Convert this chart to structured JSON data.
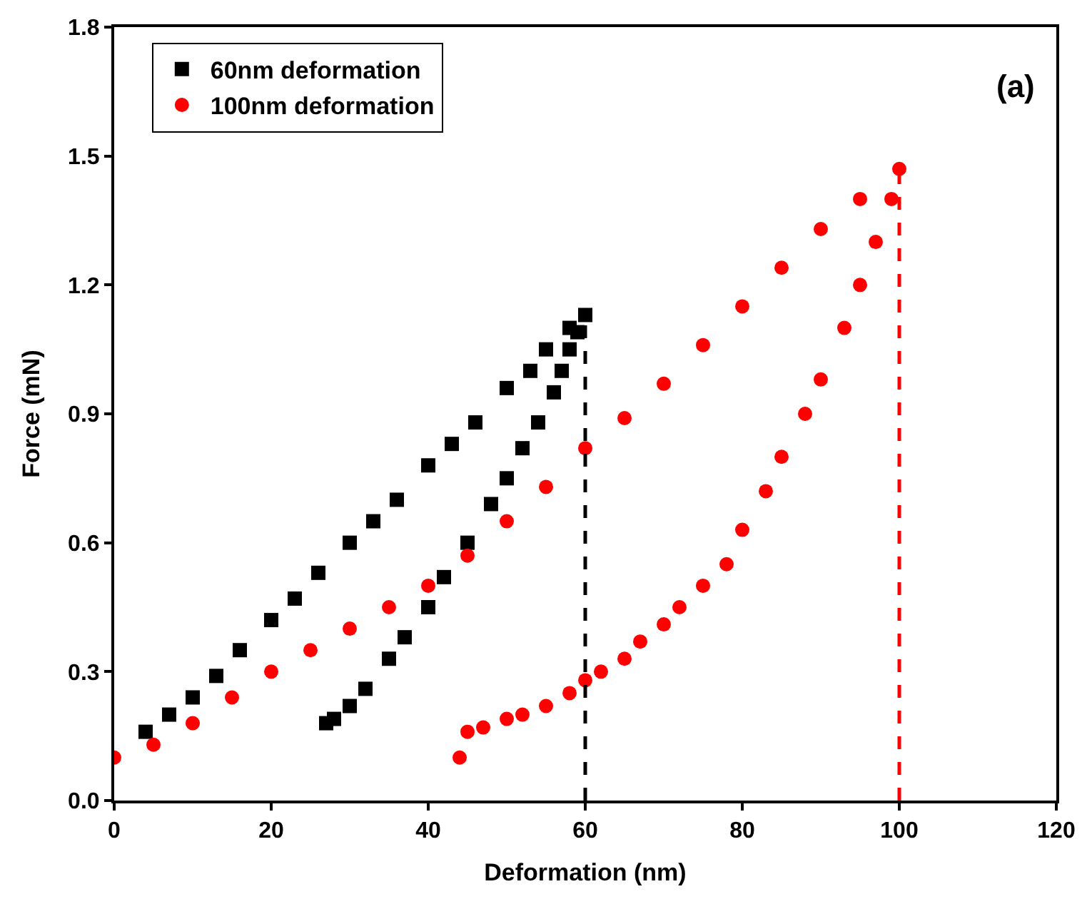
{
  "chart_data": {
    "type": "scatter",
    "xlabel": "Deformation (nm)",
    "ylabel": "Force (mN)",
    "xlim": [
      0,
      120
    ],
    "ylim": [
      0,
      1.8
    ],
    "xticks": [
      0,
      20,
      40,
      60,
      80,
      100,
      120
    ],
    "yticks": [
      {
        "value": 0,
        "label": "0.0"
      },
      0.3,
      0.6,
      0.9,
      1.2,
      1.5,
      1.8
    ],
    "legend": "top left",
    "annotations": [
      "(a)"
    ],
    "series": [
      {
        "name": "60nm deformation",
        "color": "#000000",
        "marker": "square",
        "x": [
          4,
          7,
          10,
          13,
          16,
          20,
          23,
          26,
          30,
          33,
          36,
          40,
          43,
          46,
          50,
          53,
          55,
          58,
          60,
          59,
          58,
          57,
          56,
          54,
          52,
          50,
          48,
          45,
          42,
          40,
          37,
          35,
          32,
          30,
          28,
          27
        ],
        "values": [
          0.16,
          0.2,
          0.24,
          0.29,
          0.35,
          0.42,
          0.47,
          0.53,
          0.6,
          0.65,
          0.7,
          0.78,
          0.83,
          0.88,
          0.96,
          1.0,
          1.05,
          1.1,
          1.13,
          1.09,
          1.05,
          1.0,
          0.95,
          0.88,
          0.82,
          0.75,
          0.69,
          0.6,
          0.52,
          0.45,
          0.38,
          0.33,
          0.26,
          0.22,
          0.19,
          0.18
        ]
      },
      {
        "name": "100nm deformation",
        "color": "#ff0000",
        "marker": "circle",
        "x": [
          0,
          5,
          10,
          15,
          20,
          25,
          30,
          35,
          40,
          45,
          50,
          55,
          60,
          65,
          70,
          75,
          80,
          85,
          90,
          95,
          100,
          99,
          97,
          95,
          93,
          90,
          88,
          85,
          83,
          80,
          78,
          75,
          72,
          70,
          67,
          65,
          62,
          60,
          58,
          55,
          52,
          50,
          47,
          45,
          44
        ],
        "values": [
          0.1,
          0.13,
          0.18,
          0.24,
          0.3,
          0.35,
          0.4,
          0.45,
          0.5,
          0.57,
          0.65,
          0.73,
          0.82,
          0.89,
          0.97,
          1.06,
          1.15,
          1.24,
          1.33,
          1.4,
          1.47,
          1.4,
          1.3,
          1.2,
          1.1,
          0.98,
          0.9,
          0.8,
          0.72,
          0.63,
          0.55,
          0.5,
          0.45,
          0.41,
          0.37,
          0.33,
          0.3,
          0.28,
          0.25,
          0.22,
          0.2,
          0.19,
          0.17,
          0.16,
          0.1
        ]
      },
      {
        "color": "#000000",
        "type": "line",
        "line_style": "dashed",
        "x": [
          60,
          60
        ],
        "values": [
          0,
          1.13
        ]
      },
      {
        "color": "#ff0000",
        "type": "line",
        "line_style": "dashed",
        "x": [
          100,
          100
        ],
        "values": [
          0,
          1.47
        ]
      }
    ]
  }
}
